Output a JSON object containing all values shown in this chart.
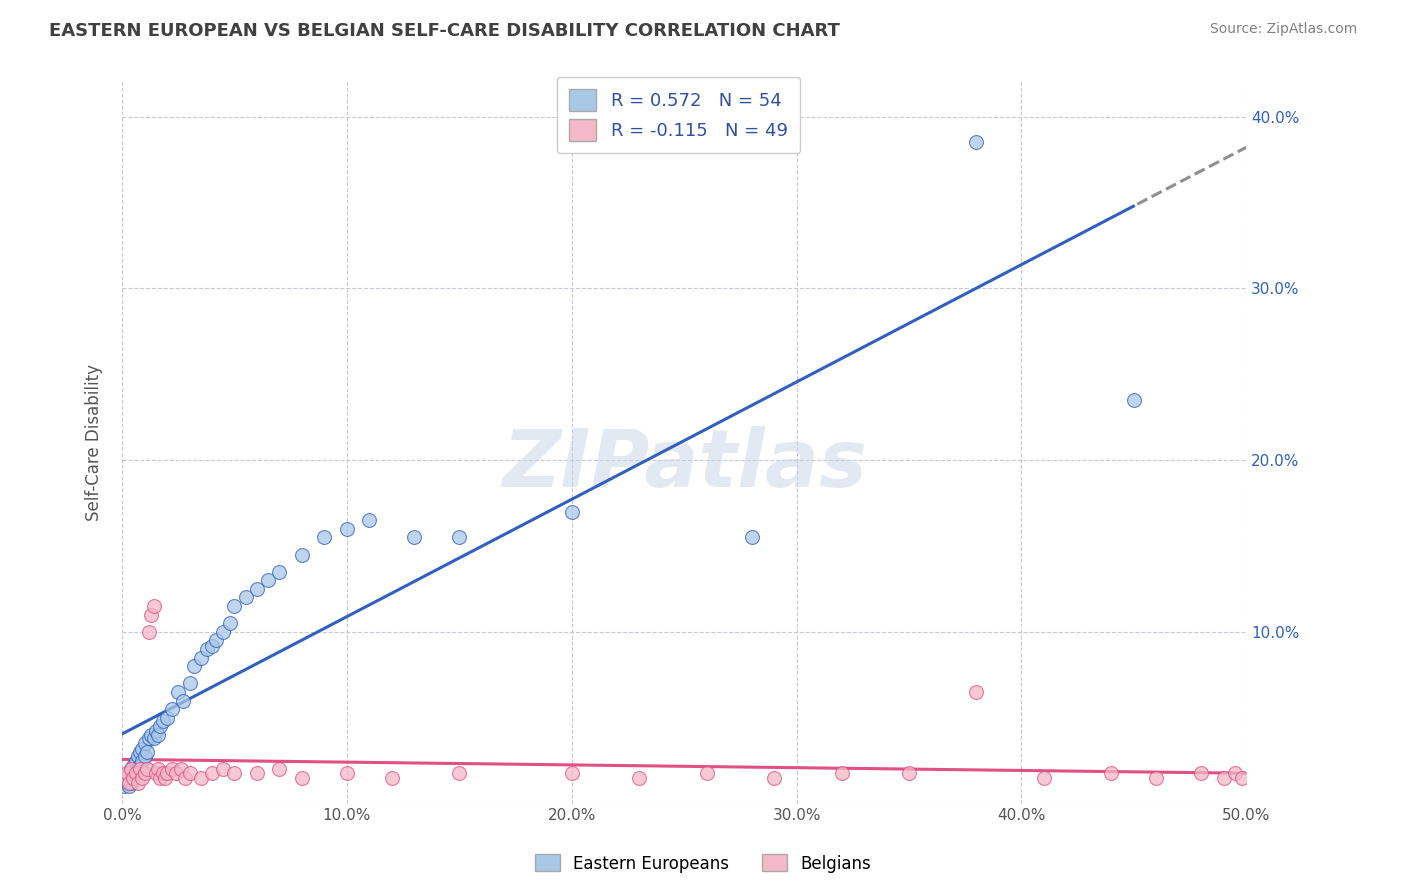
{
  "title": "EASTERN EUROPEAN VS BELGIAN SELF-CARE DISABILITY CORRELATION CHART",
  "source": "Source: ZipAtlas.com",
  "ylabel": "Self-Care Disability",
  "xlim": [
    0.0,
    0.5
  ],
  "ylim": [
    0.0,
    0.42
  ],
  "xtick_labels": [
    "0.0%",
    "10.0%",
    "20.0%",
    "30.0%",
    "40.0%",
    "50.0%"
  ],
  "xtick_vals": [
    0.0,
    0.1,
    0.2,
    0.3,
    0.4,
    0.5
  ],
  "ytick_labels": [
    "",
    "10.0%",
    "20.0%",
    "30.0%",
    "40.0%"
  ],
  "ytick_vals": [
    0.0,
    0.1,
    0.2,
    0.3,
    0.4
  ],
  "r1": 0.572,
  "n1": 54,
  "r2": -0.115,
  "n2": 49,
  "color_blue": "#a8c8e8",
  "color_pink": "#f4b8c8",
  "line_blue": "#3060c0",
  "line_pink": "#e05080",
  "watermark": "ZIPatlas",
  "background_color": "#ffffff",
  "grid_color": "#c8c8d8",
  "title_color": "#404040",
  "source_color": "#808080",
  "eastern_x": [
    0.001,
    0.002,
    0.002,
    0.003,
    0.003,
    0.004,
    0.004,
    0.005,
    0.005,
    0.006,
    0.006,
    0.007,
    0.007,
    0.008,
    0.008,
    0.009,
    0.009,
    0.01,
    0.01,
    0.011,
    0.012,
    0.013,
    0.014,
    0.015,
    0.016,
    0.017,
    0.018,
    0.02,
    0.022,
    0.025,
    0.027,
    0.03,
    0.032,
    0.035,
    0.038,
    0.04,
    0.042,
    0.045,
    0.048,
    0.05,
    0.055,
    0.06,
    0.065,
    0.07,
    0.08,
    0.09,
    0.1,
    0.11,
    0.13,
    0.15,
    0.2,
    0.28,
    0.38,
    0.45
  ],
  "eastern_y": [
    0.01,
    0.012,
    0.015,
    0.01,
    0.018,
    0.012,
    0.02,
    0.015,
    0.022,
    0.018,
    0.025,
    0.02,
    0.028,
    0.022,
    0.03,
    0.025,
    0.032,
    0.028,
    0.035,
    0.03,
    0.038,
    0.04,
    0.038,
    0.042,
    0.04,
    0.045,
    0.048,
    0.05,
    0.055,
    0.065,
    0.06,
    0.07,
    0.08,
    0.085,
    0.09,
    0.092,
    0.095,
    0.1,
    0.105,
    0.115,
    0.12,
    0.125,
    0.13,
    0.135,
    0.145,
    0.155,
    0.16,
    0.165,
    0.155,
    0.155,
    0.17,
    0.155,
    0.385,
    0.235
  ],
  "belgian_x": [
    0.001,
    0.002,
    0.003,
    0.004,
    0.005,
    0.006,
    0.007,
    0.008,
    0.009,
    0.01,
    0.011,
    0.012,
    0.013,
    0.014,
    0.015,
    0.016,
    0.017,
    0.018,
    0.019,
    0.02,
    0.022,
    0.024,
    0.026,
    0.028,
    0.03,
    0.035,
    0.04,
    0.045,
    0.05,
    0.06,
    0.07,
    0.08,
    0.1,
    0.12,
    0.15,
    0.2,
    0.23,
    0.26,
    0.29,
    0.32,
    0.35,
    0.38,
    0.41,
    0.44,
    0.46,
    0.48,
    0.49,
    0.495,
    0.498
  ],
  "belgian_y": [
    0.015,
    0.018,
    0.012,
    0.02,
    0.015,
    0.018,
    0.012,
    0.02,
    0.015,
    0.018,
    0.02,
    0.1,
    0.11,
    0.115,
    0.018,
    0.02,
    0.015,
    0.018,
    0.015,
    0.018,
    0.02,
    0.018,
    0.02,
    0.015,
    0.018,
    0.015,
    0.018,
    0.02,
    0.018,
    0.018,
    0.02,
    0.015,
    0.018,
    0.015,
    0.018,
    0.018,
    0.015,
    0.018,
    0.015,
    0.018,
    0.018,
    0.065,
    0.015,
    0.018,
    0.015,
    0.018,
    0.015,
    0.018,
    0.015
  ]
}
